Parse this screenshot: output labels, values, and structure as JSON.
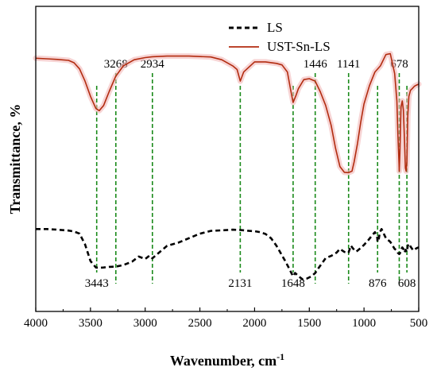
{
  "chart_data": {
    "type": "line",
    "xlabel": "Wavenumber, cm",
    "xlabel_superscript": "-1",
    "ylabel": "Transmittance, %",
    "xlim": [
      4000,
      500
    ],
    "xticks": [
      "4000",
      "3500",
      "3000",
      "2500",
      "2000",
      "1500",
      "1000",
      "500"
    ],
    "xtick_values": [
      4000,
      3500,
      3000,
      2500,
      2000,
      1500,
      1000,
      500
    ],
    "yticks": [],
    "ylim": [
      0,
      100
    ],
    "grid": false,
    "legend_position": "top-center",
    "legend": [
      {
        "label": "LS",
        "style": "dashed",
        "color": "#000000"
      },
      {
        "label": "UST-Sn-LS",
        "style": "solid",
        "color": "#b22c10"
      }
    ],
    "series": [
      {
        "name": "UST-Sn-LS",
        "color": "#b22c10",
        "style": "solid",
        "x": [
          4000,
          3900,
          3800,
          3700,
          3650,
          3600,
          3550,
          3500,
          3450,
          3420,
          3380,
          3330,
          3270,
          3200,
          3100,
          3000,
          2934,
          2800,
          2600,
          2400,
          2300,
          2200,
          2160,
          2131,
          2100,
          2000,
          1900,
          1800,
          1750,
          1700,
          1670,
          1648,
          1620,
          1600,
          1550,
          1500,
          1446,
          1400,
          1350,
          1300,
          1260,
          1220,
          1180,
          1141,
          1110,
          1090,
          1060,
          1030,
          1000,
          950,
          900,
          850,
          800,
          760,
          720,
          700,
          690,
          680,
          678,
          672,
          662,
          650,
          640,
          630,
          622,
          615,
          608,
          600,
          590,
          575,
          560,
          540,
          520,
          500
        ],
        "values": [
          83,
          82.8,
          82.6,
          82.3,
          81.5,
          79.5,
          75.5,
          70.5,
          66.5,
          65.8,
          67.5,
          72,
          77,
          80.5,
          82.5,
          83.2,
          83.5,
          83.7,
          83.7,
          83.4,
          82.5,
          80.5,
          79.3,
          75.5,
          78.5,
          81.8,
          81.8,
          81.3,
          80.8,
          78.5,
          72.5,
          68.5,
          71,
          73,
          76,
          76.3,
          75.5,
          72,
          67.5,
          61,
          53.5,
          47.5,
          45.6,
          45.5,
          46,
          49,
          55,
          62,
          68,
          74,
          78.5,
          80.5,
          84.2,
          84.5,
          78,
          69,
          58,
          48.5,
          46,
          52,
          67,
          69,
          66,
          56,
          47,
          46,
          49,
          64,
          70.5,
          72.5,
          73,
          73.8,
          74.2,
          74.5
        ]
      },
      {
        "name": "LS",
        "color": "#000000",
        "style": "dashed",
        "x": [
          4000,
          3900,
          3800,
          3700,
          3650,
          3600,
          3550,
          3500,
          3450,
          3420,
          3380,
          3330,
          3270,
          3200,
          3120,
          3060,
          3000,
          2960,
          2934,
          2900,
          2800,
          2700,
          2600,
          2500,
          2400,
          2300,
          2200,
          2131,
          2050,
          2000,
          1950,
          1900,
          1850,
          1800,
          1760,
          1720,
          1680,
          1660,
          1648,
          1630,
          1600,
          1560,
          1520,
          1480,
          1446,
          1420,
          1380,
          1350,
          1300,
          1250,
          1220,
          1180,
          1141,
          1120,
          1100,
          1070,
          1040,
          1000,
          960,
          920,
          900,
          880,
          876,
          866,
          855,
          840,
          800,
          760,
          720,
          700,
          690,
          678,
          670,
          660,
          650,
          640,
          630,
          620,
          608,
          600,
          590,
          570,
          550,
          530,
          515,
          500
        ],
        "values": [
          27,
          27,
          26.8,
          26.5,
          26.2,
          25.5,
          22,
          16.5,
          14.4,
          14.3,
          14.4,
          14.6,
          14.7,
          15.2,
          16.3,
          18,
          17.2,
          18.3,
          17.4,
          18.5,
          21.5,
          22.5,
          24,
          25.5,
          26.4,
          26.6,
          26.8,
          26.7,
          26.4,
          26.3,
          26,
          25.4,
          24,
          21.5,
          19,
          16.5,
          13.8,
          12.3,
          11.5,
          12.6,
          11.6,
          10.5,
          10.8,
          11.5,
          12.6,
          14,
          16,
          17.5,
          18.2,
          19.3,
          20.5,
          19.5,
          19.3,
          21.6,
          20.6,
          19.6,
          20.5,
          21.8,
          23.4,
          25.2,
          26,
          24.5,
          22.8,
          23.5,
          26,
          27,
          24,
          22.8,
          20.5,
          20,
          19.2,
          18.8,
          19.2,
          20.3,
          21,
          20.5,
          19.3,
          20.2,
          19.5,
          21.5,
          22.2,
          21,
          20,
          20.5,
          20.8,
          21
        ]
      }
    ],
    "annotations": [
      {
        "text": "3443",
        "x": 3443,
        "label_pos": "below"
      },
      {
        "text": "3268",
        "x": 3268,
        "label_pos": "above"
      },
      {
        "text": "2934",
        "x": 2934,
        "label_pos": "above"
      },
      {
        "text": "2131",
        "x": 2131,
        "label_pos": "below"
      },
      {
        "text": "1648",
        "x": 1648,
        "label_pos": "below"
      },
      {
        "text": "1446",
        "x": 1446,
        "label_pos": "above"
      },
      {
        "text": "1141",
        "x": 1141,
        "label_pos": "above"
      },
      {
        "text": "876",
        "x": 876,
        "label_pos": "below"
      },
      {
        "text": "678",
        "x": 678,
        "label_pos": "above"
      },
      {
        "text": "608",
        "x": 608,
        "label_pos": "below"
      }
    ],
    "annotation_line_color": "#1a8a1a"
  }
}
